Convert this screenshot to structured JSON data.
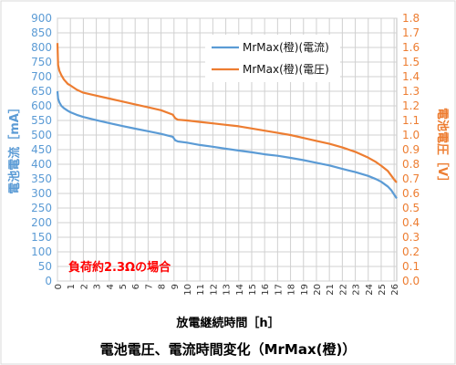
{
  "chart_data": {
    "type": "line",
    "title": "電池電圧、電流時間変化（MrMax(橙)）",
    "xlabel": "放電継続時間［h］",
    "ylabel_left": "電池電流［mA］",
    "ylabel_right": "電池電圧［V］",
    "annotation": "負荷約2.3Ωの場合",
    "xlim": [
      0,
      26.2
    ],
    "ylim_left": [
      0,
      900
    ],
    "ylim_right": [
      0,
      1.8
    ],
    "x_ticks": [
      "0",
      "1",
      "2",
      "3",
      "4",
      "5",
      "6",
      "7",
      "8",
      "9",
      "10",
      "11",
      "12",
      "13",
      "14",
      "15",
      "16",
      "17",
      "18",
      "19",
      "20",
      "21",
      "22",
      "23",
      "24",
      "25",
      "26"
    ],
    "y_left_ticks": [
      "0",
      "50",
      "100",
      "150",
      "200",
      "250",
      "300",
      "350",
      "400",
      "450",
      "500",
      "550",
      "600",
      "650",
      "700",
      "750",
      "800",
      "850",
      "900"
    ],
    "y_right_ticks": [
      "0.0",
      "0.1",
      "0.2",
      "0.3",
      "0.4",
      "0.5",
      "0.6",
      "0.7",
      "0.8",
      "0.9",
      "1.0",
      "1.1",
      "1.2",
      "1.3",
      "1.4",
      "1.5",
      "1.6",
      "1.7",
      "1.8"
    ],
    "grid": true,
    "legend_position": "top-right",
    "series": [
      {
        "name": "MrMax(橙)(電流)",
        "axis": "left",
        "color": "#5b9bd5",
        "x": [
          0,
          0.05,
          0.15,
          0.3,
          0.5,
          0.8,
          1,
          1.5,
          2,
          3,
          4,
          5,
          6,
          7,
          8,
          8.9,
          9.1,
          9.3,
          10,
          11,
          12,
          13,
          14,
          15,
          16,
          17,
          18,
          19,
          20,
          21,
          22,
          23,
          24,
          24.6,
          25,
          25.5,
          25.8,
          26,
          26.2
        ],
        "y": [
          650,
          625,
          612,
          600,
          592,
          583,
          578,
          569,
          562,
          551,
          541,
          531,
          522,
          513,
          504,
          494,
          482,
          478,
          474,
          466,
          460,
          453,
          447,
          441,
          434,
          429,
          422,
          414,
          405,
          396,
          384,
          373,
          360,
          349,
          340,
          324,
          310,
          296,
          283
        ]
      },
      {
        "name": "MrMax(橙)(電圧)",
        "axis": "right",
        "color": "#ed7d31",
        "x": [
          0,
          0.05,
          0.15,
          0.3,
          0.5,
          0.8,
          1,
          1.5,
          2,
          3,
          4,
          5,
          6,
          7,
          8,
          8.9,
          9.1,
          9.3,
          10,
          11,
          12,
          13,
          14,
          15,
          16,
          17,
          18,
          19,
          20,
          21,
          22,
          23,
          24,
          24.6,
          25,
          25.5,
          25.8,
          26,
          26.2
        ],
        "y": [
          1.63,
          1.48,
          1.44,
          1.41,
          1.38,
          1.35,
          1.34,
          1.31,
          1.29,
          1.27,
          1.25,
          1.23,
          1.21,
          1.19,
          1.17,
          1.14,
          1.115,
          1.105,
          1.1,
          1.09,
          1.08,
          1.07,
          1.06,
          1.045,
          1.03,
          1.015,
          1.0,
          0.98,
          0.96,
          0.94,
          0.915,
          0.885,
          0.845,
          0.815,
          0.79,
          0.755,
          0.72,
          0.695,
          0.675
        ]
      }
    ]
  }
}
